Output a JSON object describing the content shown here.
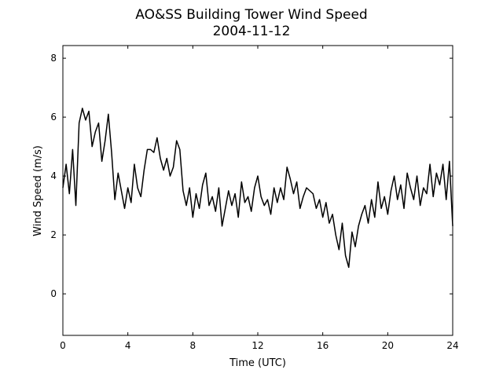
{
  "chart_data": {
    "type": "line",
    "title": "AO&SS Building Tower Wind Speed",
    "subtitle": "2004-11-12",
    "x_label": "Time (UTC)",
    "y_label": "Wind Speed (m/s)",
    "color": "#000000",
    "x": [
      0,
      0.2,
      0.4,
      0.6,
      0.8,
      1,
      1.2,
      1.4,
      1.6,
      1.8,
      2,
      2.2,
      2.4,
      2.6,
      2.8,
      3,
      3.2,
      3.4,
      3.6,
      3.8,
      4,
      4.2,
      4.4,
      4.6,
      4.8,
      5,
      5.2,
      5.4,
      5.6,
      5.8,
      6,
      6.2,
      6.4,
      6.6,
      6.8,
      7,
      7.2,
      7.4,
      7.6,
      7.8,
      8,
      8.2,
      8.4,
      8.6,
      8.8,
      9,
      9.2,
      9.4,
      9.6,
      9.8,
      10,
      10.2,
      10.4,
      10.6,
      10.8,
      11,
      11.2,
      11.4,
      11.6,
      11.8,
      12,
      12.2,
      12.4,
      12.6,
      12.8,
      13,
      13.2,
      13.4,
      13.6,
      13.8,
      14,
      14.2,
      14.4,
      14.6,
      14.8,
      15,
      15.2,
      15.4,
      15.6,
      15.8,
      16,
      16.2,
      16.4,
      16.6,
      16.8,
      17,
      17.2,
      17.4,
      17.6,
      17.8,
      18,
      18.2,
      18.4,
      18.6,
      18.8,
      19,
      19.2,
      19.4,
      19.6,
      19.8,
      20,
      20.2,
      20.4,
      20.6,
      20.8,
      21,
      21.2,
      21.4,
      21.6,
      21.8,
      22,
      22.2,
      22.4,
      22.6,
      22.8,
      23,
      23.2,
      23.4,
      23.6,
      23.8,
      24
    ],
    "values": [
      3.6,
      4.4,
      3.4,
      4.9,
      3.0,
      5.8,
      6.3,
      5.9,
      6.2,
      5.0,
      5.5,
      5.8,
      4.5,
      5.2,
      6.1,
      4.8,
      3.2,
      4.1,
      3.5,
      2.9,
      3.6,
      3.1,
      4.4,
      3.6,
      3.3,
      4.2,
      4.9,
      4.9,
      4.8,
      5.3,
      4.6,
      4.2,
      4.6,
      4.0,
      4.3,
      5.2,
      4.9,
      3.5,
      3.0,
      3.6,
      2.6,
      3.4,
      2.9,
      3.7,
      4.1,
      3.0,
      3.3,
      2.8,
      3.6,
      2.3,
      2.9,
      3.5,
      3.0,
      3.4,
      2.6,
      3.8,
      3.1,
      3.3,
      2.8,
      3.6,
      4.0,
      3.3,
      3.0,
      3.2,
      2.7,
      3.6,
      3.1,
      3.6,
      3.2,
      4.3,
      3.9,
      3.4,
      3.8,
      2.9,
      3.3,
      3.6,
      3.5,
      3.4,
      2.9,
      3.2,
      2.6,
      3.1,
      2.4,
      2.7,
      2.0,
      1.5,
      2.4,
      1.3,
      0.9,
      2.1,
      1.6,
      2.3,
      2.7,
      3.0,
      2.4,
      3.2,
      2.6,
      3.8,
      2.9,
      3.3,
      2.7,
      3.5,
      4.0,
      3.2,
      3.7,
      2.9,
      4.1,
      3.6,
      3.2,
      4.0,
      3.0,
      3.6,
      3.4,
      4.4,
      3.3,
      4.1,
      3.7,
      4.4,
      3.2,
      4.5,
      2.3
    ],
    "xlim": [
      0,
      24
    ],
    "xticks": [
      0,
      4,
      8,
      12,
      16,
      20,
      24
    ],
    "ylim": [
      -1.41,
      8.43
    ],
    "yticks": [
      0,
      2,
      4,
      6,
      8
    ]
  }
}
